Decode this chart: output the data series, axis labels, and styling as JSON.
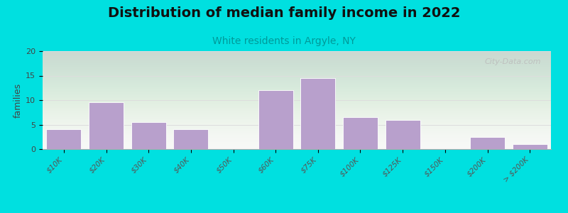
{
  "title": "Distribution of median family income in 2022",
  "subtitle": "White residents in Argyle, NY",
  "ylabel": "families",
  "categories": [
    "$10K",
    "$20K",
    "$30K",
    "$40K",
    "$50K",
    "$60K",
    "$75K",
    "$100K",
    "$125K",
    "$150K",
    "$200K",
    "> $200K"
  ],
  "values": [
    4,
    9.5,
    5.5,
    4,
    0,
    12,
    14.5,
    6.5,
    6,
    0,
    2.5,
    1
  ],
  "bar_color": "#b8a0cc",
  "bar_edge_color": "#ffffff",
  "outer_bg_color": "#00e0e0",
  "plot_bg_top": "#e6f0d8",
  "plot_bg_bottom": "#f8f8f8",
  "grid_color": "#dddddd",
  "subtitle_color": "#009999",
  "ylim": [
    0,
    20
  ],
  "yticks": [
    0,
    5,
    10,
    15,
    20
  ],
  "title_fontsize": 14,
  "subtitle_fontsize": 10,
  "ylabel_fontsize": 9,
  "tick_fontsize": 7.5,
  "watermark": "City-Data.com"
}
